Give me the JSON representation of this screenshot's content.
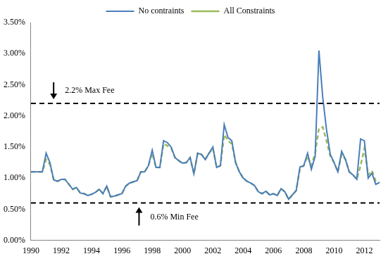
{
  "chart_data": {
    "type": "line",
    "x": [
      1990,
      1990.25,
      1990.5,
      1990.75,
      1991,
      1991.25,
      1991.5,
      1991.75,
      1992,
      1992.25,
      1992.5,
      1992.75,
      1993,
      1993.25,
      1993.5,
      1993.75,
      1994,
      1994.25,
      1994.5,
      1994.75,
      1995,
      1995.25,
      1995.5,
      1995.75,
      1996,
      1996.25,
      1996.5,
      1996.75,
      1997,
      1997.25,
      1997.5,
      1997.75,
      1998,
      1998.25,
      1998.5,
      1998.75,
      1999,
      1999.25,
      1999.5,
      1999.75,
      2000,
      2000.25,
      2000.5,
      2000.75,
      2001,
      2001.25,
      2001.5,
      2001.75,
      2002,
      2002.25,
      2002.5,
      2002.75,
      2003,
      2003.25,
      2003.5,
      2003.75,
      2004,
      2004.25,
      2004.5,
      2004.75,
      2005,
      2005.25,
      2005.5,
      2005.75,
      2006,
      2006.25,
      2006.5,
      2006.75,
      2007,
      2007.25,
      2007.5,
      2007.75,
      2008,
      2008.25,
      2008.5,
      2008.75,
      2009,
      2009.25,
      2009.5,
      2009.75,
      2010,
      2010.25,
      2010.5,
      2010.75,
      2011,
      2011.25,
      2011.5,
      2011.75,
      2012,
      2012.25,
      2012.5,
      2012.75,
      2013
    ],
    "series": [
      {
        "name": "No contraints",
        "color": "#4a7ebb",
        "line_style": "solid",
        "values": [
          1.1,
          1.1,
          1.1,
          1.1,
          1.4,
          1.25,
          0.97,
          0.95,
          0.98,
          0.98,
          0.9,
          0.82,
          0.85,
          0.76,
          0.75,
          0.72,
          0.74,
          0.77,
          0.82,
          0.75,
          0.87,
          0.7,
          0.71,
          0.73,
          0.75,
          0.87,
          0.92,
          0.94,
          0.96,
          1.1,
          1.1,
          1.2,
          1.45,
          1.17,
          1.17,
          1.6,
          1.57,
          1.5,
          1.33,
          1.28,
          1.24,
          1.25,
          1.33,
          1.07,
          1.4,
          1.38,
          1.3,
          1.4,
          1.5,
          1.17,
          1.2,
          1.86,
          1.65,
          1.6,
          1.25,
          1.1,
          1.0,
          0.95,
          0.92,
          0.88,
          0.78,
          0.75,
          0.79,
          0.73,
          0.75,
          0.72,
          0.83,
          0.78,
          0.66,
          0.73,
          0.8,
          1.18,
          1.2,
          1.4,
          1.14,
          1.35,
          3.05,
          2.3,
          1.78,
          1.38,
          1.25,
          1.1,
          1.43,
          1.3,
          1.1,
          1.05,
          0.98,
          1.63,
          1.6,
          1.0,
          1.08,
          0.9,
          0.93
        ]
      },
      {
        "name": "All Constraints",
        "color": "#9bbb59",
        "line_style": "dashed",
        "values": [
          1.1,
          1.1,
          1.1,
          1.1,
          1.3,
          1.22,
          0.97,
          0.95,
          0.98,
          0.98,
          0.9,
          0.82,
          0.85,
          0.76,
          0.75,
          0.72,
          0.74,
          0.77,
          0.82,
          0.75,
          0.87,
          0.7,
          0.71,
          0.73,
          0.75,
          0.87,
          0.92,
          0.94,
          0.96,
          1.1,
          1.1,
          1.2,
          1.4,
          1.17,
          1.17,
          1.55,
          1.52,
          1.48,
          1.33,
          1.28,
          1.24,
          1.25,
          1.33,
          1.07,
          1.4,
          1.38,
          1.3,
          1.4,
          1.48,
          1.17,
          1.2,
          1.7,
          1.6,
          1.55,
          1.25,
          1.1,
          1.0,
          0.95,
          0.92,
          0.88,
          0.78,
          0.75,
          0.79,
          0.73,
          0.75,
          0.72,
          0.83,
          0.78,
          0.66,
          0.73,
          0.8,
          1.15,
          1.2,
          1.35,
          1.2,
          1.4,
          1.8,
          1.82,
          1.6,
          1.35,
          1.25,
          1.1,
          1.38,
          1.3,
          1.1,
          1.05,
          0.98,
          1.2,
          1.48,
          1.05,
          1.12,
          0.95,
          0.93
        ]
      }
    ],
    "xlim": [
      1990,
      2013
    ],
    "xticks": [
      1990,
      1992,
      1994,
      1996,
      1998,
      2000,
      2002,
      2004,
      2006,
      2008,
      2010,
      2012
    ],
    "ylim": [
      0,
      3.5
    ],
    "yticks": [
      {
        "value": 0,
        "label": "0.00%"
      },
      {
        "value": 0.5,
        "label": "0.50%"
      },
      {
        "value": 1,
        "label": "1.00%"
      },
      {
        "value": 1.5,
        "label": "1.50%"
      },
      {
        "value": 2,
        "label": "2.00%"
      },
      {
        "value": 2.5,
        "label": "2.50%"
      },
      {
        "value": 3,
        "label": "3.00%"
      },
      {
        "value": 3.5,
        "label": "3.50%"
      }
    ],
    "reference_lines": [
      {
        "value": 2.2,
        "label": "2.2% Max Fee"
      },
      {
        "value": 0.6,
        "label": "0.6% Min Fee"
      }
    ],
    "grid": false,
    "legend": "top"
  }
}
